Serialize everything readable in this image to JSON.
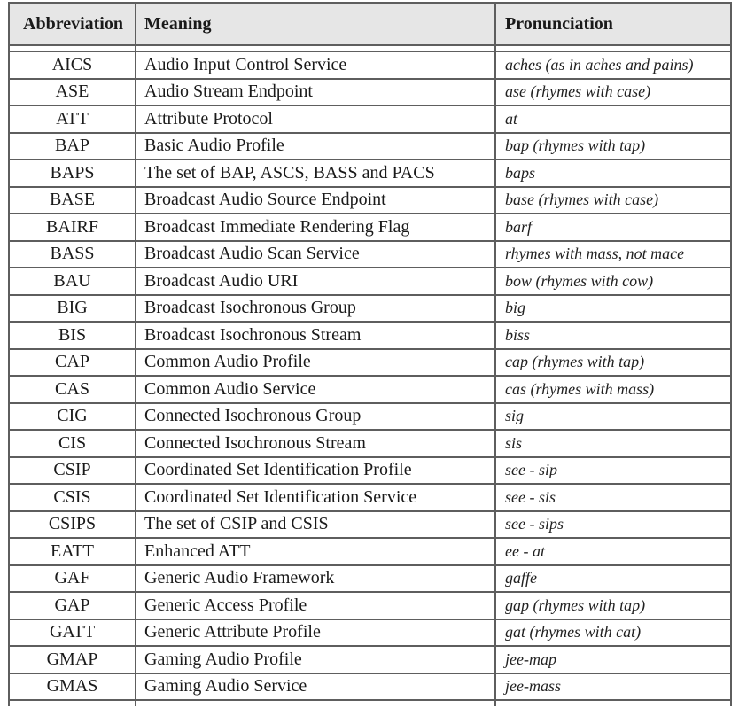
{
  "table": {
    "headers": [
      "Abbreviation",
      "Meaning",
      "Pronunciation"
    ],
    "rows": [
      {
        "abbr": "AICS",
        "meaning": "Audio Input Control Service",
        "pron": "aches (as in aches and pains)"
      },
      {
        "abbr": "ASE",
        "meaning": "Audio Stream Endpoint",
        "pron": "ase (rhymes with case)"
      },
      {
        "abbr": "ATT",
        "meaning": "Attribute Protocol",
        "pron": "at"
      },
      {
        "abbr": "BAP",
        "meaning": "Basic Audio Profile",
        "pron": "bap (rhymes with tap)"
      },
      {
        "abbr": "BAPS",
        "meaning": "The set of BAP, ASCS, BASS and PACS",
        "pron": "baps"
      },
      {
        "abbr": "BASE",
        "meaning": "Broadcast Audio Source Endpoint",
        "pron": "base (rhymes with case)"
      },
      {
        "abbr": "BAIRF",
        "meaning": "Broadcast Immediate Rendering Flag",
        "pron": "barf"
      },
      {
        "abbr": "BASS",
        "meaning": "Broadcast Audio Scan Service",
        "pron": "rhymes with mass, not mace"
      },
      {
        "abbr": "BAU",
        "meaning": "Broadcast Audio URI",
        "pron": "bow (rhymes with cow)"
      },
      {
        "abbr": "BIG",
        "meaning": "Broadcast Isochronous Group",
        "pron": "big"
      },
      {
        "abbr": "BIS",
        "meaning": "Broadcast Isochronous Stream",
        "pron": "biss"
      },
      {
        "abbr": "CAP",
        "meaning": "Common Audio Profile",
        "pron": "cap (rhymes with tap)"
      },
      {
        "abbr": "CAS",
        "meaning": "Common Audio Service",
        "pron": "cas (rhymes with mass)"
      },
      {
        "abbr": "CIG",
        "meaning": "Connected Isochronous Group",
        "pron": "sig"
      },
      {
        "abbr": "CIS",
        "meaning": "Connected Isochronous Stream",
        "pron": "sis"
      },
      {
        "abbr": "CSIP",
        "meaning": "Coordinated Set Identification Profile",
        "pron": "see - sip"
      },
      {
        "abbr": "CSIS",
        "meaning": "Coordinated Set Identification Service",
        "pron": "see - sis"
      },
      {
        "abbr": "CSIPS",
        "meaning": "The set of CSIP and CSIS",
        "pron": "see - sips"
      },
      {
        "abbr": "EATT",
        "meaning": "Enhanced ATT",
        "pron": "ee - at"
      },
      {
        "abbr": "GAF",
        "meaning": "Generic Audio Framework",
        "pron": "gaffe"
      },
      {
        "abbr": "GAP",
        "meaning": "Generic Access Profile",
        "pron": "gap (rhymes with tap)"
      },
      {
        "abbr": "GATT",
        "meaning": "Generic Attribute Profile",
        "pron": "gat (rhymes with cat)"
      },
      {
        "abbr": "GMAP",
        "meaning": "Gaming Audio Profile",
        "pron": "jee-map"
      },
      {
        "abbr": "GMAS",
        "meaning": "Gaming Audio Service",
        "pron": "jee-mass"
      }
    ],
    "colors": {
      "border": "#5e5e5e",
      "header_bg": "#e6e6e6",
      "text": "#1a1a1a"
    }
  }
}
